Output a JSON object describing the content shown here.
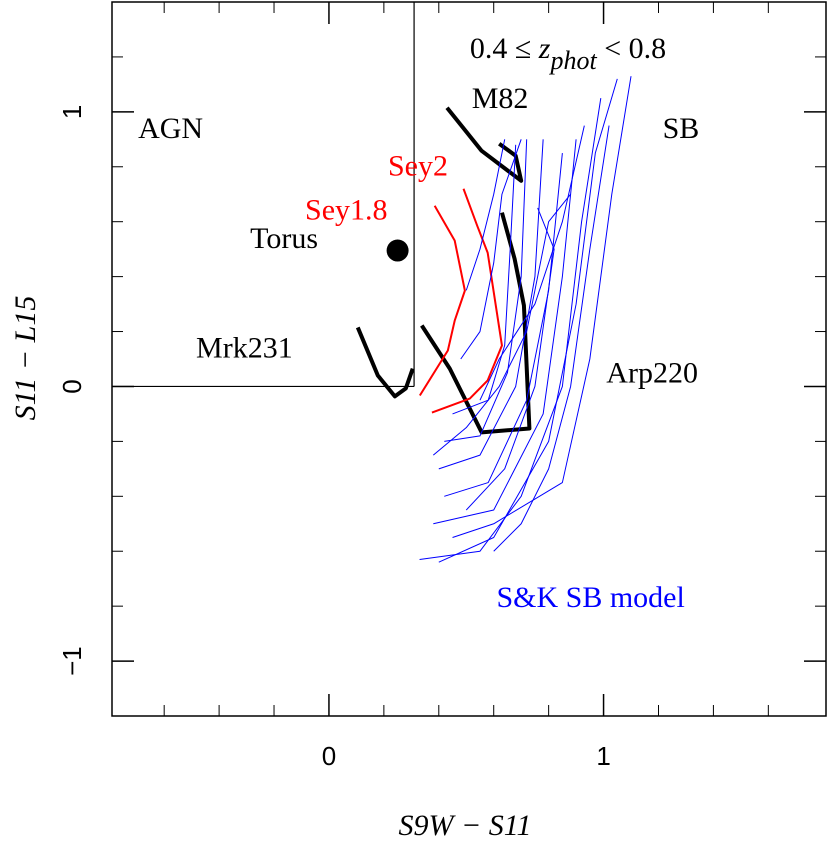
{
  "chart_data": {
    "type": "line",
    "title": {
      "prefix": "0.4 ≤ ",
      "var": "z",
      "sub": "phot",
      "suffix": " < 0.8",
      "x": 0.513,
      "y": 1.222
    },
    "xlabel": "S9W − S11",
    "ylabel": "S11 − L15",
    "xlim": [
      -0.79,
      1.81
    ],
    "ylim": [
      -1.2,
      1.4
    ],
    "xticks": [
      0,
      1
    ],
    "yticks": [
      {
        "value": -1,
        "label": "−1"
      },
      0,
      1
    ],
    "xminor_ticks": [
      -0.6,
      -0.4,
      -0.2,
      0.2,
      0.4,
      0.6,
      0.8,
      1.2,
      1.4,
      1.6
    ],
    "yminor_ticks": [
      -0.8,
      -0.6,
      -0.4,
      -0.2,
      0.2,
      0.4,
      0.6,
      0.8,
      1.2
    ],
    "boundary": {
      "x": 0.31,
      "y": 0
    },
    "regions": [
      {
        "name": "AGN",
        "x": -0.695,
        "y": 0.93
      },
      {
        "name": "SB",
        "x": 1.215,
        "y": 0.93
      }
    ],
    "point": {
      "name": "Torus",
      "x": 0.25,
      "y": 0.495,
      "color": "#000000",
      "label_x": -0.287,
      "label_y": 0.53
    },
    "series": [
      {
        "name": "M82",
        "color": "#000000",
        "width": 4,
        "label_x": 0.52,
        "label_y": 1.04,
        "x": [
          0.43,
          0.556,
          0.7,
          0.68,
          0.62
        ],
        "y": [
          1.015,
          0.858,
          0.749,
          0.84,
          0.884
        ]
      },
      {
        "name": "Mrk231",
        "color": "#000000",
        "width": 4,
        "label_x": -0.484,
        "label_y": 0.131,
        "x": [
          0.105,
          0.178,
          0.24,
          0.28,
          0.305
        ],
        "y": [
          0.215,
          0.04,
          -0.036,
          -0.007,
          0.065
        ]
      },
      {
        "name": "Arp220",
        "color": "#000000",
        "width": 4,
        "label_x": 1.01,
        "label_y": 0.04,
        "x": [
          0.338,
          0.44,
          0.556,
          0.73,
          0.71,
          0.676,
          0.63
        ],
        "y": [
          0.222,
          0.065,
          -0.167,
          -0.153,
          0.295,
          0.465,
          0.633
        ]
      },
      {
        "name": "Sey2",
        "color": "#ff0000",
        "width": 2,
        "label_x": 0.215,
        "label_y": 0.793,
        "x": [
          0.49,
          0.54,
          0.578,
          0.63,
          0.578,
          0.513,
          0.375
        ],
        "y": [
          0.72,
          0.585,
          0.487,
          0.149,
          0.022,
          -0.044,
          -0.095
        ]
      },
      {
        "name": "Sey1.8",
        "color": "#ff0000",
        "width": 2,
        "label_x": -0.087,
        "label_y": 0.633,
        "x": [
          0.385,
          0.458,
          0.495,
          0.458,
          0.433,
          0.331
        ],
        "y": [
          0.658,
          0.531,
          0.349,
          0.24,
          0.131,
          -0.033
        ]
      },
      {
        "name": "S&K SB model",
        "color": "#0000ff",
        "width": 1,
        "label_x": 0.61,
        "label_y": -0.778,
        "tracks": [
          {
            "x": [
              0.33,
              0.55,
              0.7,
              0.85,
              0.92,
              0.99
            ],
            "y": [
              -0.63,
              -0.6,
              -0.4,
              0.0,
              0.6,
              1.05
            ]
          },
          {
            "x": [
              0.4,
              0.6,
              0.8,
              0.9,
              0.97,
              1.05
            ],
            "y": [
              -0.64,
              -0.55,
              -0.2,
              0.3,
              0.85,
              1.12
            ]
          },
          {
            "x": [
              0.38,
              0.6,
              0.78,
              0.85,
              0.9
            ],
            "y": [
              -0.5,
              -0.45,
              -0.1,
              0.4,
              0.9
            ]
          },
          {
            "x": [
              0.42,
              0.58,
              0.72,
              0.8,
              0.85
            ],
            "y": [
              -0.4,
              -0.35,
              -0.05,
              0.35,
              0.85
            ]
          },
          {
            "x": [
              0.4,
              0.55,
              0.68,
              0.75,
              0.78
            ],
            "y": [
              -0.3,
              -0.25,
              0.0,
              0.4,
              0.9
            ]
          },
          {
            "x": [
              0.42,
              0.55,
              0.65,
              0.7,
              0.72
            ],
            "y": [
              -0.2,
              -0.18,
              0.05,
              0.4,
              0.9
            ]
          },
          {
            "x": [
              0.45,
              0.58,
              0.64,
              0.66,
              0.68
            ],
            "y": [
              -0.1,
              -0.05,
              0.15,
              0.5,
              0.88
            ]
          },
          {
            "x": [
              0.5,
              0.64,
              0.75,
              0.82,
              0.76
            ],
            "y": [
              -0.45,
              -0.3,
              0.0,
              0.5,
              0.65
            ]
          },
          {
            "x": [
              0.45,
              0.6,
              0.85,
              0.95,
              1.03,
              1.1
            ],
            "y": [
              -0.55,
              -0.5,
              -0.35,
              0.1,
              0.7,
              1.13
            ]
          },
          {
            "x": [
              0.48,
              0.55,
              0.6,
              0.63,
              0.7
            ],
            "y": [
              0.1,
              0.2,
              0.45,
              0.7,
              0.9
            ]
          },
          {
            "x": [
              0.5,
              0.55,
              0.6,
              0.64
            ],
            "y": [
              0.35,
              0.5,
              0.7,
              0.9
            ]
          },
          {
            "x": [
              0.55,
              0.62,
              0.75,
              0.85,
              0.93
            ],
            "y": [
              -0.05,
              0.1,
              0.3,
              0.6,
              0.95
            ]
          },
          {
            "x": [
              0.38,
              0.5,
              0.62,
              0.72,
              0.8,
              0.88
            ],
            "y": [
              -0.25,
              -0.15,
              0.0,
              0.2,
              0.6,
              0.7
            ]
          },
          {
            "x": [
              0.6,
              0.7,
              0.8,
              0.88,
              0.95,
              1.02
            ],
            "y": [
              -0.6,
              -0.5,
              -0.3,
              0.0,
              0.5,
              0.95
            ]
          }
        ]
      }
    ]
  }
}
